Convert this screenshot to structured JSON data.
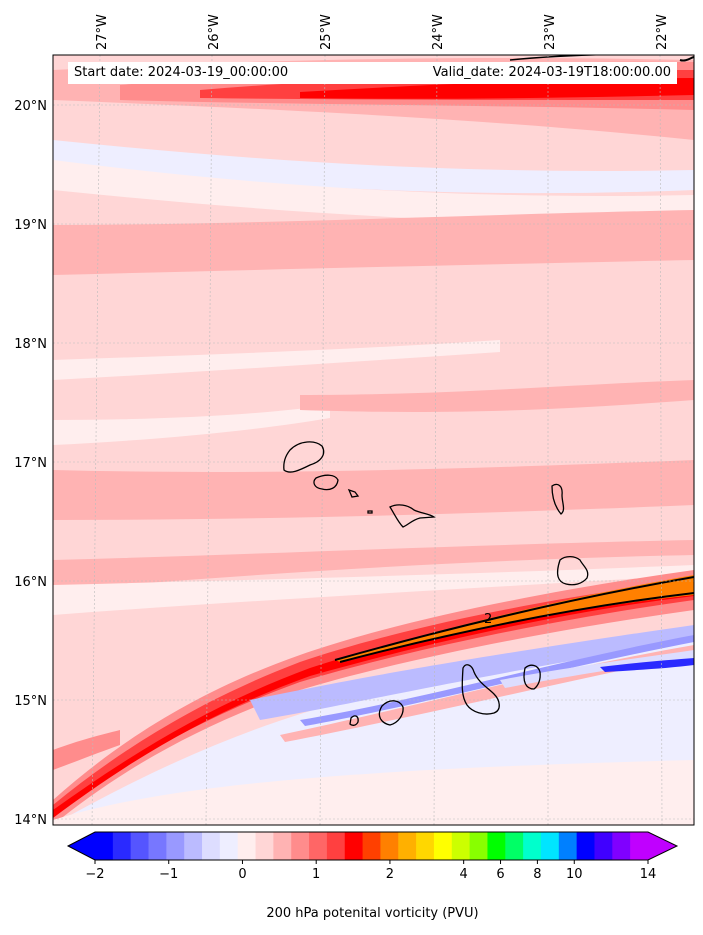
{
  "header": {
    "start_date": "Start date: 2024-03-19_00:00:00",
    "valid_date": "Valid_date: 2024-03-19T18:00:00.00"
  },
  "map": {
    "lon_labels": [
      "27°W",
      "26°W",
      "25°W",
      "24°W",
      "23°W",
      "22°W"
    ],
    "lat_labels": [
      "20°N",
      "19°N",
      "18°N",
      "17°N",
      "16°N",
      "15°N",
      "14°N"
    ],
    "contour_label": "2"
  },
  "colorbar": {
    "label": "200 hPa potenital vorticity (PVU)",
    "tick_labels": [
      "−2",
      "−1",
      "0",
      "1",
      "2",
      "4",
      "6",
      "8",
      "10",
      "14"
    ],
    "colors": [
      "#0000ff",
      "#2a2aff",
      "#5555ff",
      "#7777ff",
      "#9999ff",
      "#bbbbff",
      "#ddddff",
      "#eeeeff",
      "#ffeeee",
      "#ffd6d6",
      "#ffb3b3",
      "#ff8c8c",
      "#ff6666",
      "#ff4040",
      "#ff0000",
      "#ff4000",
      "#ff8000",
      "#ffb000",
      "#ffd700",
      "#ffff00",
      "#ccff00",
      "#88ff00",
      "#00ff00",
      "#00ff66",
      "#00ffcc",
      "#00e5ff",
      "#0080ff",
      "#0000ff",
      "#4000ff",
      "#8000ff",
      "#c000ff"
    ]
  },
  "chart_data": {
    "type": "heatmap",
    "variable": "200 hPa potential vorticity",
    "units": "PVU",
    "lon_range": [
      -27.2,
      -21.8
    ],
    "lat_range": [
      14,
      20.4
    ],
    "contour_levels": [
      -2,
      -1.75,
      -1.5,
      -1.25,
      -1,
      -0.75,
      -0.5,
      -0.25,
      0,
      0.25,
      0.5,
      0.75,
      1,
      1.25,
      1.5,
      1.75,
      2,
      2.5,
      3,
      3.5,
      4,
      5,
      6,
      7,
      8,
      9,
      10,
      11,
      12,
      13,
      14
    ],
    "labeled_contour": 2
  }
}
